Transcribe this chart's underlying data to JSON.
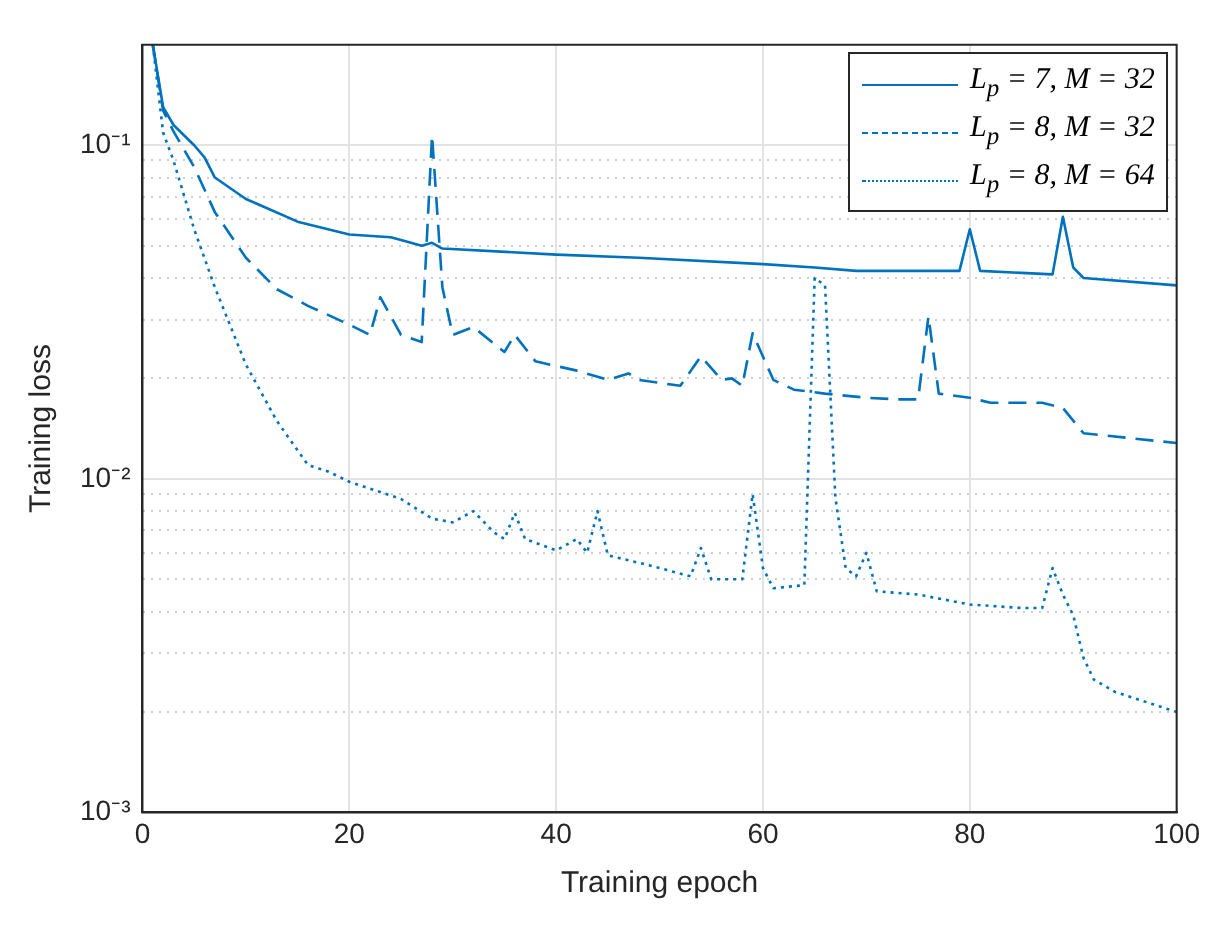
{
  "chart_data": {
    "type": "line",
    "xlabel": "Training epoch",
    "ylabel": "Training loss",
    "log": "y",
    "grid": true,
    "legend": "top right",
    "marker": "none",
    "xlim": [
      0,
      100
    ],
    "xticks": [
      0,
      20,
      40,
      60,
      80,
      100
    ],
    "ylim": [
      0.001,
      0.2
    ],
    "yticks": [
      {
        "value": 0.001,
        "label": "10⁻³"
      },
      {
        "value": 0.002,
        "label": null
      },
      {
        "value": 0.003,
        "label": null
      },
      {
        "value": 0.004,
        "label": null
      },
      {
        "value": 0.005,
        "label": null
      },
      {
        "value": 0.006,
        "label": null
      },
      {
        "value": 0.007,
        "label": null
      },
      {
        "value": 0.008,
        "label": null
      },
      {
        "value": 0.009,
        "label": null
      },
      {
        "value": 0.01,
        "label": "10⁻²"
      },
      {
        "value": 0.02,
        "label": null
      },
      {
        "value": 0.03,
        "label": null
      },
      {
        "value": 0.04,
        "label": null
      },
      {
        "value": 0.05,
        "label": null
      },
      {
        "value": 0.06,
        "label": null
      },
      {
        "value": 0.07,
        "label": null
      },
      {
        "value": 0.08,
        "label": null
      },
      {
        "value": 0.09,
        "label": null
      },
      {
        "value": 0.1,
        "label": "10⁻¹"
      }
    ],
    "series": [
      {
        "name": "L$_{p}$ = 7, M = 32",
        "color": "#0072bd",
        "line_style": "solid",
        "x": [
          1,
          2,
          3,
          5,
          6,
          7,
          10,
          15,
          20,
          24,
          25,
          27,
          28,
          29,
          40,
          48,
          60,
          65,
          69,
          79,
          80,
          81,
          88,
          89,
          90,
          91,
          100
        ],
        "values": [
          0.2,
          0.13,
          0.115,
          0.1,
          0.092,
          0.08,
          0.069,
          0.059,
          0.054,
          0.053,
          0.052,
          0.05,
          0.051,
          0.049,
          0.047,
          0.046,
          0.044,
          0.043,
          0.042,
          0.042,
          0.056,
          0.042,
          0.041,
          0.061,
          0.043,
          0.04,
          0.038
        ]
      },
      {
        "name": "L$_{p}$ = 8, M = 32",
        "color": "#0072bd",
        "line_style": "dashed",
        "x": [
          1,
          2,
          3,
          5,
          7,
          10,
          13,
          16,
          20,
          22,
          23,
          25,
          27,
          28,
          29,
          30,
          32,
          35,
          36,
          38,
          42,
          45,
          47,
          48,
          52,
          54,
          56,
          57,
          58,
          59,
          61,
          63,
          66,
          70,
          73,
          75,
          76,
          77,
          80,
          82,
          87,
          89,
          91,
          100
        ],
        "values": [
          0.2,
          0.127,
          0.11,
          0.086,
          0.063,
          0.046,
          0.037,
          0.033,
          0.029,
          0.027,
          0.035,
          0.027,
          0.0257,
          0.107,
          0.0375,
          0.027,
          0.0285,
          0.024,
          0.027,
          0.0225,
          0.0211,
          0.0198,
          0.0207,
          0.0198,
          0.019,
          0.0233,
          0.0198,
          0.02,
          0.019,
          0.0273,
          0.0198,
          0.0185,
          0.018,
          0.0175,
          0.0173,
          0.0173,
          0.0307,
          0.018,
          0.0175,
          0.0169,
          0.0169,
          0.0163,
          0.0137,
          0.0128
        ]
      },
      {
        "name": "L$_{p}$ = 8, M = 64",
        "color": "#0072bd",
        "line_style": "dotted",
        "x": [
          1,
          2,
          3,
          5,
          7,
          10,
          13,
          16,
          18,
          20,
          25,
          28,
          30,
          31,
          32,
          34,
          35,
          36,
          37,
          40,
          42,
          43,
          44,
          45,
          48,
          50,
          53,
          54,
          55,
          58,
          59,
          60,
          61,
          64,
          65,
          66,
          67,
          68,
          69,
          70,
          71,
          75,
          80,
          85,
          87,
          88,
          89,
          90,
          91,
          92,
          94,
          100
        ],
        "values": [
          0.2,
          0.109,
          0.09,
          0.056,
          0.0375,
          0.022,
          0.0149,
          0.011,
          0.0105,
          0.0098,
          0.0087,
          0.0076,
          0.0074,
          0.0077,
          0.008,
          0.0069,
          0.0066,
          0.0079,
          0.0066,
          0.0061,
          0.0066,
          0.006,
          0.008,
          0.0059,
          0.0056,
          0.0054,
          0.0051,
          0.0062,
          0.005,
          0.005,
          0.009,
          0.0054,
          0.0047,
          0.0048,
          0.04,
          0.038,
          0.0088,
          0.0054,
          0.0051,
          0.006,
          0.0046,
          0.0045,
          0.0042,
          0.0041,
          0.0041,
          0.0054,
          0.0045,
          0.0039,
          0.0029,
          0.0025,
          0.0023,
          0.002
        ]
      }
    ]
  }
}
